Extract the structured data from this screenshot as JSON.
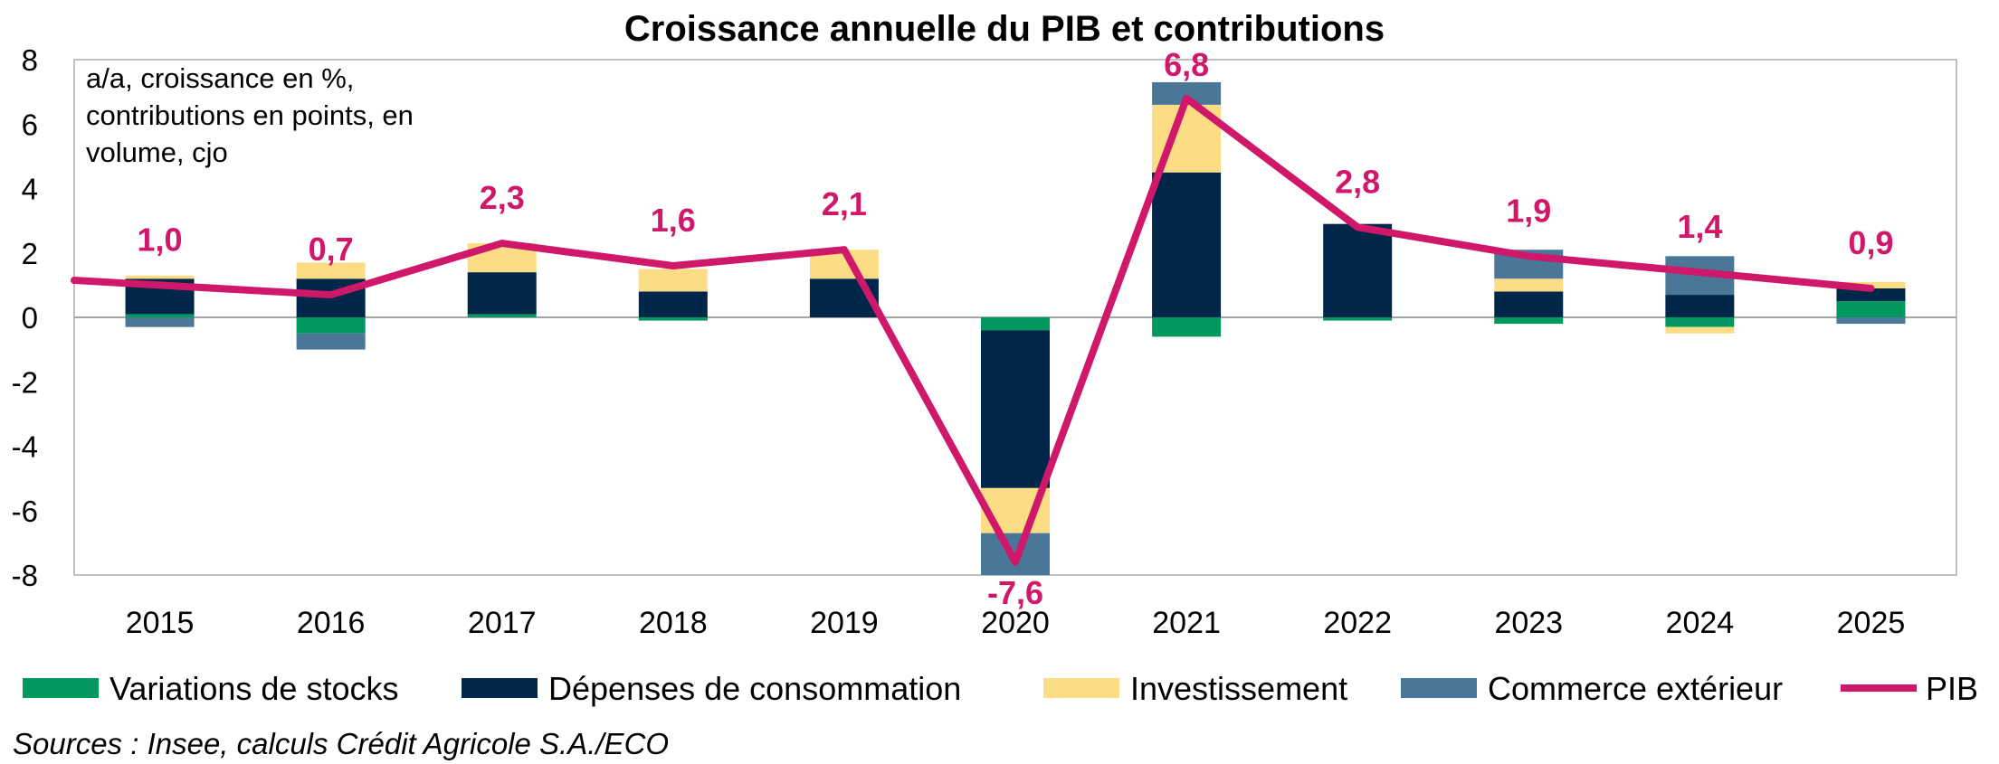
{
  "chart_data": {
    "type": "bar",
    "stacked": true,
    "title": "Croissance annuelle du PIB et contributions",
    "annotation": [
      "a/a, croissance en %,",
      "contributions en points, en",
      "volume, cjo"
    ],
    "source": "Sources : Insee, calculs Crédit Agricole S.A./ECO",
    "categories": [
      "2015",
      "2016",
      "2017",
      "2018",
      "2019",
      "2020",
      "2021",
      "2022",
      "2023",
      "2024",
      "2025"
    ],
    "ylim": [
      -8,
      8
    ],
    "yticks": [
      8,
      6,
      4,
      2,
      0,
      -2,
      -4,
      -6,
      -8
    ],
    "ytick_labels": [
      "8",
      "6",
      "4",
      "2",
      "0",
      "-2",
      "-4",
      "-6",
      "-8"
    ],
    "grid": false,
    "legend_position": "bottom",
    "series": [
      {
        "name": "Variations de stocks",
        "color": "#00985F",
        "values": [
          0.1,
          -0.5,
          0.1,
          -0.1,
          0.0,
          -0.4,
          -0.6,
          -0.1,
          -0.2,
          -0.3,
          0.5
        ]
      },
      {
        "name": "Dépenses de consommation",
        "color": "#002649",
        "values": [
          1.1,
          1.2,
          1.3,
          0.8,
          1.2,
          -4.9,
          4.5,
          2.9,
          0.8,
          0.7,
          0.4
        ]
      },
      {
        "name": "Investissement",
        "color": "#FDDC86",
        "values": [
          0.1,
          0.5,
          0.9,
          0.7,
          0.9,
          -1.4,
          2.1,
          0.0,
          0.4,
          -0.2,
          0.2
        ]
      },
      {
        "name": "Commerce extérieur",
        "color": "#4A7698",
        "values": [
          -0.3,
          -0.5,
          0.0,
          0.0,
          0.0,
          -1.3,
          0.7,
          0.0,
          0.9,
          1.2,
          -0.2
        ]
      }
    ],
    "line": {
      "name": "PIB",
      "color": "#D0186A",
      "values": [
        1.0,
        0.7,
        2.3,
        1.6,
        2.1,
        -7.6,
        6.8,
        2.8,
        1.9,
        1.4,
        0.9
      ],
      "labels": [
        "1,0",
        "0,7",
        "2,3",
        "1,6",
        "2,1",
        "-7,6",
        "6,8",
        "2,8",
        "1,9",
        "1,4",
        "0,9"
      ]
    }
  }
}
